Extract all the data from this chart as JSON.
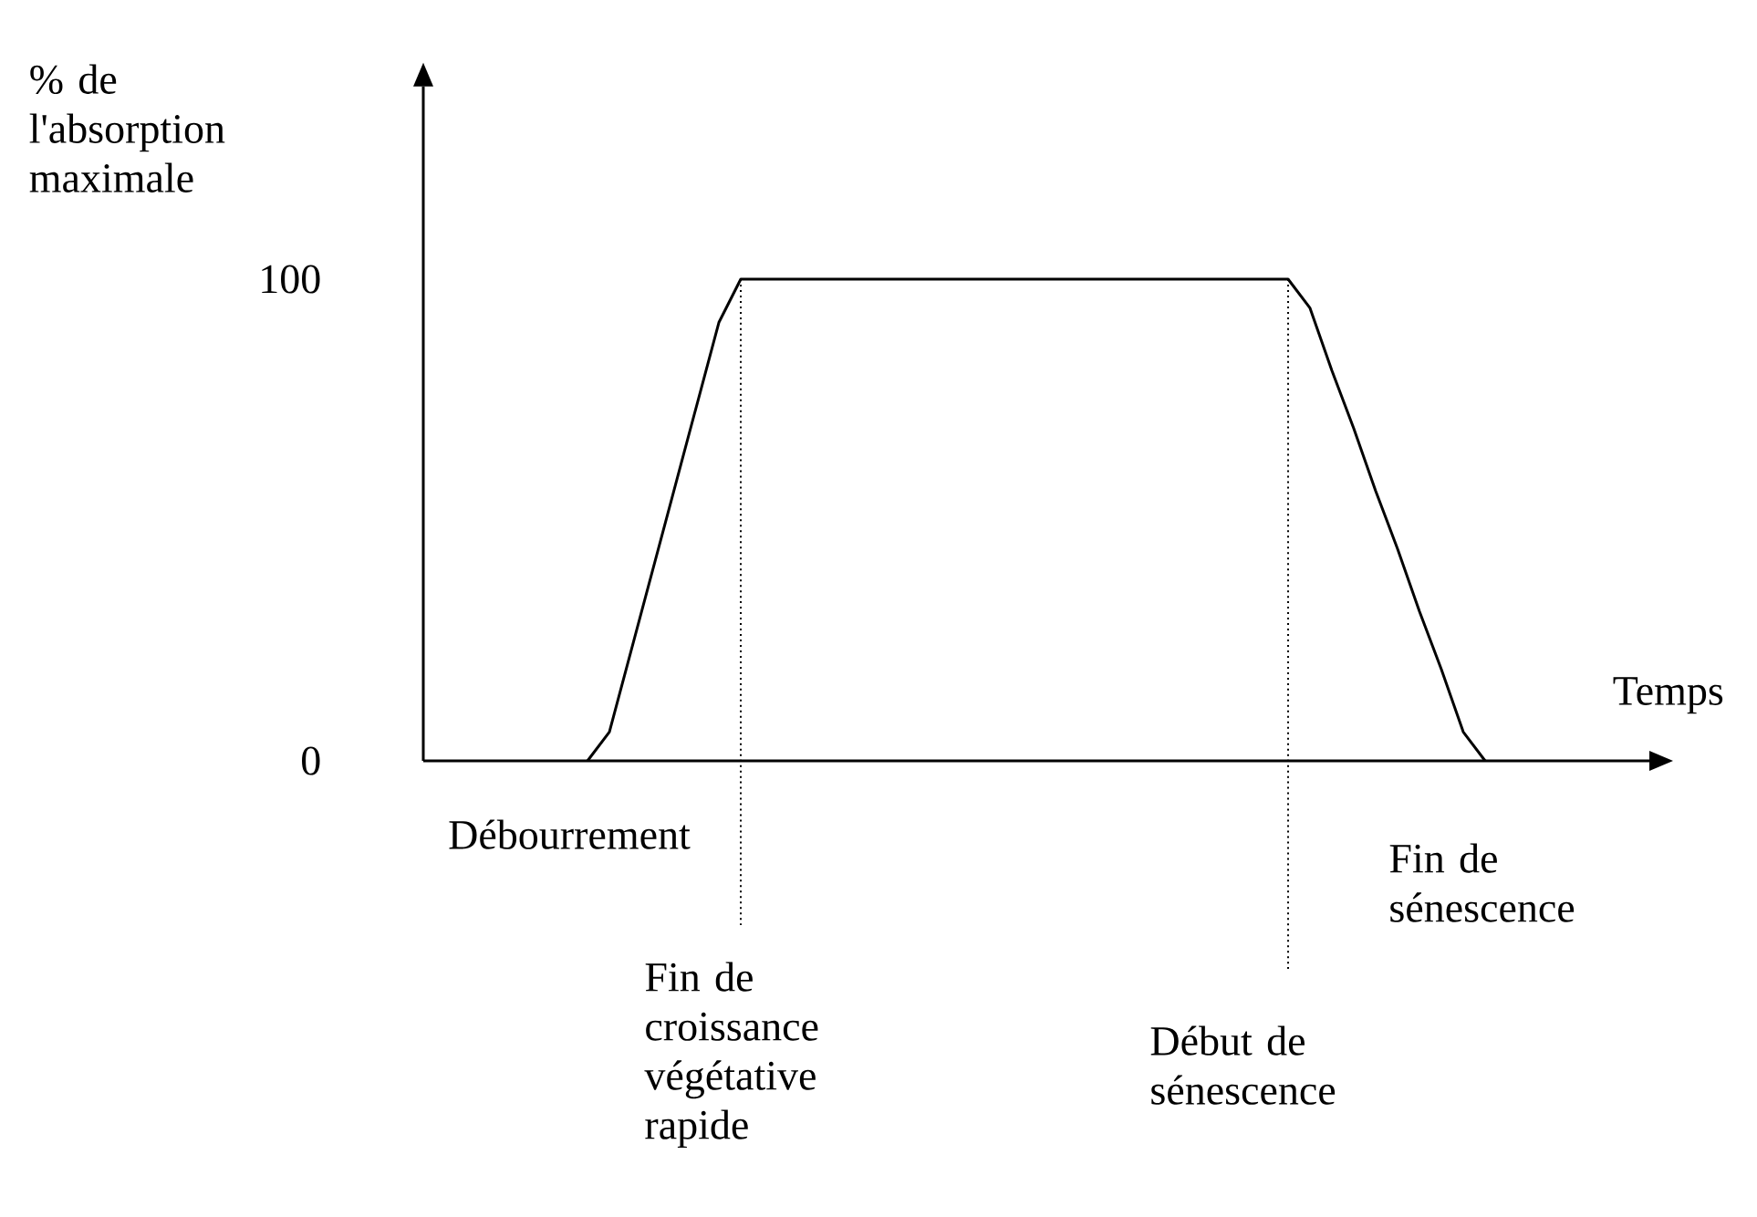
{
  "chart_data": {
    "type": "line",
    "xlabel": "Temps",
    "ylabel": "% de l'absorption maximale",
    "categories": [
      null,
      null,
      null,
      null,
      null,
      null,
      null,
      null,
      null,
      null,
      null,
      null,
      null,
      null,
      null,
      null,
      null,
      null,
      null,
      null,
      null,
      null,
      null,
      null,
      null,
      null,
      null,
      null,
      null,
      null,
      null,
      null,
      null,
      null,
      null,
      null,
      null,
      null,
      null,
      null,
      null,
      null,
      null,
      null,
      null,
      null,
      null,
      null,
      null,
      null,
      null,
      null,
      null,
      null,
      null,
      null
    ],
    "series": [
      {
        "color": "#000000",
        "values": [
          null,
          null,
          null,
          null,
          null,
          null,
          null,
          0,
          6,
          23,
          40,
          57,
          74,
          91,
          100,
          100,
          100,
          100,
          100,
          100,
          100,
          100,
          100,
          100,
          100,
          100,
          100,
          100,
          100,
          100,
          100,
          100,
          100,
          100,
          100,
          100,
          100,
          100,
          100,
          100,
          94,
          81,
          69,
          56,
          44,
          31,
          19,
          6,
          0,
          null,
          null,
          null,
          null,
          null,
          null,
          null
        ]
      }
    ],
    "ylim": [
      0,
      140
    ],
    "yticks": [
      0,
      100
    ],
    "tick_labels": "y",
    "line_style": "solid",
    "annotations": [
      "Débourrement",
      "Fin de croissance végétative rapide",
      "Début de sénescence",
      "Fin de sénescence"
    ]
  }
}
